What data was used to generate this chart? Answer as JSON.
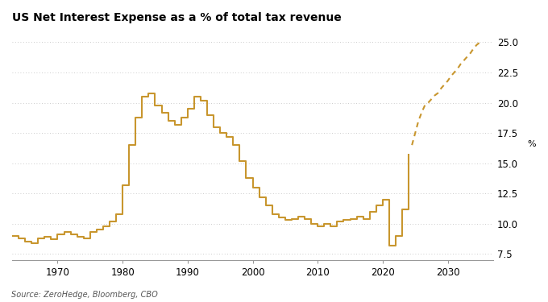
{
  "title": "US Net Interest Expense as a % of total tax revenue",
  "source": "Source: ZeroHedge, Bloomberg, CBO",
  "ylabel": "%",
  "xlim": [
    1963,
    2037
  ],
  "ylim": [
    7.0,
    26.2
  ],
  "yticks": [
    7.5,
    10.0,
    12.5,
    15.0,
    17.5,
    20.0,
    22.5,
    25.0
  ],
  "xticks": [
    1970,
    1980,
    1990,
    2000,
    2010,
    2020,
    2030
  ],
  "line_color": "#C8962E",
  "background_color": "#FFFFFF",
  "grid_color": "#BBBBBB",
  "solid_data": [
    [
      1963,
      9.0
    ],
    [
      1964,
      8.8
    ],
    [
      1965,
      8.5
    ],
    [
      1966,
      8.4
    ],
    [
      1967,
      8.8
    ],
    [
      1968,
      8.9
    ],
    [
      1969,
      8.7
    ],
    [
      1970,
      9.1
    ],
    [
      1971,
      9.3
    ],
    [
      1972,
      9.1
    ],
    [
      1973,
      8.9
    ],
    [
      1974,
      8.8
    ],
    [
      1975,
      9.3
    ],
    [
      1976,
      9.5
    ],
    [
      1977,
      9.8
    ],
    [
      1978,
      10.2
    ],
    [
      1979,
      10.8
    ],
    [
      1980,
      13.2
    ],
    [
      1981,
      16.5
    ],
    [
      1982,
      18.8
    ],
    [
      1983,
      20.5
    ],
    [
      1984,
      20.8
    ],
    [
      1985,
      19.8
    ],
    [
      1986,
      19.2
    ],
    [
      1987,
      18.5
    ],
    [
      1988,
      18.2
    ],
    [
      1989,
      18.8
    ],
    [
      1990,
      19.5
    ],
    [
      1991,
      20.5
    ],
    [
      1992,
      20.2
    ],
    [
      1993,
      19.0
    ],
    [
      1994,
      18.0
    ],
    [
      1995,
      17.5
    ],
    [
      1996,
      17.2
    ],
    [
      1997,
      16.5
    ],
    [
      1998,
      15.2
    ],
    [
      1999,
      13.8
    ],
    [
      2000,
      13.0
    ],
    [
      2001,
      12.2
    ],
    [
      2002,
      11.5
    ],
    [
      2003,
      10.8
    ],
    [
      2004,
      10.5
    ],
    [
      2005,
      10.3
    ],
    [
      2006,
      10.4
    ],
    [
      2007,
      10.6
    ],
    [
      2008,
      10.4
    ],
    [
      2009,
      10.0
    ],
    [
      2010,
      9.8
    ],
    [
      2011,
      10.0
    ],
    [
      2012,
      9.8
    ],
    [
      2013,
      10.2
    ],
    [
      2014,
      10.3
    ],
    [
      2015,
      10.4
    ],
    [
      2016,
      10.6
    ],
    [
      2017,
      10.4
    ],
    [
      2018,
      11.0
    ],
    [
      2019,
      11.5
    ],
    [
      2020,
      12.0
    ],
    [
      2021,
      8.2
    ],
    [
      2022,
      9.0
    ],
    [
      2023,
      11.2
    ],
    [
      2024,
      15.8
    ]
  ],
  "dashed_data": [
    [
      2024.5,
      16.5
    ],
    [
      2025.0,
      17.5
    ],
    [
      2025.5,
      18.5
    ],
    [
      2026.0,
      19.2
    ],
    [
      2026.5,
      19.8
    ],
    [
      2027.0,
      20.0
    ],
    [
      2027.5,
      20.3
    ],
    [
      2028.0,
      20.6
    ],
    [
      2028.5,
      20.8
    ],
    [
      2029.0,
      21.2
    ],
    [
      2029.5,
      21.5
    ],
    [
      2030.0,
      21.8
    ],
    [
      2030.5,
      22.2
    ],
    [
      2031.0,
      22.5
    ],
    [
      2031.5,
      22.8
    ],
    [
      2032.0,
      23.2
    ],
    [
      2032.5,
      23.5
    ],
    [
      2033.0,
      23.8
    ],
    [
      2033.5,
      24.1
    ],
    [
      2034.0,
      24.5
    ],
    [
      2034.5,
      24.8
    ],
    [
      2035.0,
      25.0
    ]
  ]
}
